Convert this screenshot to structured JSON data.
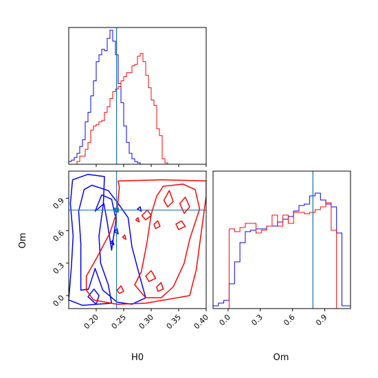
{
  "chart_data": {
    "type": "corner-plot",
    "parameters": [
      "H0",
      "Om"
    ],
    "truth": {
      "H0": 0.237,
      "Om": 0.79
    },
    "colors": {
      "series_a": "#0000ff",
      "series_b": "#ff0000",
      "truth": "#1f77b4"
    },
    "panels": {
      "h0_hist": {
        "xlim": [
          0.15,
          0.4
        ],
        "bin_edges": [
          0.15,
          0.155,
          0.16,
          0.165,
          0.17,
          0.175,
          0.18,
          0.185,
          0.19,
          0.195,
          0.2,
          0.205,
          0.21,
          0.215,
          0.22,
          0.225,
          0.23,
          0.235,
          0.24,
          0.245,
          0.25,
          0.255,
          0.26,
          0.265,
          0.27,
          0.275,
          0.28,
          0.285,
          0.29,
          0.295,
          0.3,
          0.305,
          0.31,
          0.315,
          0.32,
          0.325,
          0.33,
          0.335,
          0.34,
          0.345,
          0.35,
          0.355,
          0.36,
          0.365,
          0.37,
          0.375,
          0.38,
          0.385,
          0.39,
          0.395,
          0.4
        ],
        "series": [
          {
            "color": "#0000ff",
            "values": [
              0.02,
              0.03,
              0.05,
              0.08,
              0.13,
              0.18,
              0.31,
              0.38,
              0.5,
              0.61,
              0.75,
              0.8,
              0.84,
              0.83,
              0.92,
              0.98,
              0.9,
              0.8,
              0.59,
              0.45,
              0.28,
              0.16,
              0.08,
              0.04,
              0.02,
              0.01,
              0,
              0,
              0,
              0,
              0,
              0,
              0,
              0,
              0,
              0,
              0,
              0,
              0,
              0,
              0,
              0,
              0,
              0,
              0,
              0,
              0,
              0,
              0,
              0
            ]
          },
          {
            "color": "#ff0000",
            "values": [
              0,
              0,
              0,
              0.02,
              0.06,
              0.06,
              0.11,
              0.16,
              0.25,
              0.28,
              0.29,
              0.31,
              0.32,
              0.38,
              0.42,
              0.48,
              0.53,
              0.55,
              0.57,
              0.61,
              0.64,
              0.67,
              0.67,
              0.72,
              0.73,
              0.79,
              0.81,
              0.75,
              0.65,
              0.56,
              0.47,
              0.43,
              0.26,
              0.21,
              0.04,
              0.01,
              0,
              0,
              0,
              0,
              0,
              0,
              0,
              0,
              0,
              0,
              0,
              0,
              0,
              0
            ]
          }
        ]
      },
      "om_hist": {
        "xlim": [
          -0.14,
          1.14
        ],
        "bin_edges": [
          -0.14,
          -0.09,
          -0.04,
          0.01,
          0.06,
          0.11,
          0.16,
          0.21,
          0.26,
          0.31,
          0.36,
          0.41,
          0.46,
          0.51,
          0.56,
          0.61,
          0.66,
          0.71,
          0.76,
          0.81,
          0.86,
          0.91,
          0.96,
          1.01,
          1.06,
          1.11,
          1.14
        ],
        "series": [
          {
            "color": "#0000ff",
            "values": [
              0.02,
              0.04,
              0.06,
              0.18,
              0.34,
              0.48,
              0.56,
              0.57,
              0.58,
              0.58,
              0.6,
              0.6,
              0.63,
              0.65,
              0.67,
              0.71,
              0.75,
              0.76,
              0.82,
              0.84,
              0.79,
              0.76,
              0.74,
              0.55,
              0.02,
              0.02
            ]
          },
          {
            "color": "#ff0000",
            "values": [
              0,
              0,
              0,
              0.58,
              0.56,
              0.59,
              0.62,
              0.62,
              0.55,
              0.57,
              0.6,
              0.68,
              0.6,
              0.68,
              0.62,
              0.7,
              0.7,
              0.69,
              0.7,
              0.72,
              0.74,
              0.77,
              0.57,
              0,
              0,
              0
            ]
          }
        ]
      },
      "joint": {
        "xlim": [
          0.15,
          0.4
        ],
        "ylim": [
          -0.12,
          1.15
        ],
        "contours": [
          {
            "color": "#0000ff",
            "paths": [
              [
                [
                  0.15,
                  -0.04
                ],
                [
                  0.155,
                  0.28
                ],
                [
                  0.158,
                  0.55
                ],
                [
                  0.153,
                  0.85
                ],
                [
                  0.157,
                  1.07
                ],
                [
                  0.185,
                  1.12
                ],
                [
                  0.215,
                  1.1
                ],
                [
                  0.213,
                  0.85
                ],
                [
                  0.205,
                  0.55
                ],
                [
                  0.208,
                  0.3
                ],
                [
                  0.222,
                  0.1
                ],
                [
                  0.228,
                  -0.07
                ],
                [
                  0.175,
                  -0.09
                ],
                [
                  0.15,
                  -0.04
                ]
              ],
              [
                [
                  0.172,
                  0.05
                ],
                [
                  0.172,
                  0.48
                ],
                [
                  0.168,
                  0.78
                ],
                [
                  0.178,
                  0.98
                ],
                [
                  0.192,
                  1.02
                ],
                [
                  0.222,
                  0.97
                ],
                [
                  0.24,
                  0.85
                ],
                [
                  0.258,
                  0.72
                ],
                [
                  0.265,
                  0.45
                ],
                [
                  0.278,
                  0.2
                ],
                [
                  0.29,
                  -0.02
                ],
                [
                  0.265,
                  -0.08
                ],
                [
                  0.238,
                  -0.06
                ],
                [
                  0.212,
                  0.05
                ],
                [
                  0.198,
                  0.25
                ],
                [
                  0.186,
                  0.06
                ],
                [
                  0.172,
                  0.05
                ]
              ],
              [
                [
                  0.198,
                  0.78
                ],
                [
                  0.21,
                  0.93
                ],
                [
                  0.228,
                  0.89
                ],
                [
                  0.236,
                  0.7
                ],
                [
                  0.228,
                  0.42
                ],
                [
                  0.22,
                  0.68
                ],
                [
                  0.214,
                  0.85
                ],
                [
                  0.198,
                  0.78
                ]
              ],
              [
                [
                  0.185,
                  -0.01
                ],
                [
                  0.196,
                  0.06
                ],
                [
                  0.205,
                  0.0
                ],
                [
                  0.2,
                  -0.08
                ],
                [
                  0.185,
                  -0.01
                ]
              ],
              [
                [
                  0.233,
                  0.59
                ],
                [
                  0.238,
                  0.62
                ],
                [
                  0.24,
                  0.57
                ],
                [
                  0.233,
                  0.59
                ]
              ],
              [
                [
                  0.275,
                  0.8
                ],
                [
                  0.28,
                  0.82
                ],
                [
                  0.282,
                  0.78
                ],
                [
                  0.275,
                  0.8
                ]
              ],
              [
                [
                  0.226,
                  0.49
                ],
                [
                  0.23,
                  0.51
                ],
                [
                  0.232,
                  0.47
                ],
                [
                  0.226,
                  0.49
                ]
              ]
            ]
          },
          {
            "color": "#ff0000",
            "paths": [
              [
                [
                  0.182,
                  0.18
                ],
                [
                  0.2,
                  0.34
                ],
                [
                  0.225,
                  0.58
                ],
                [
                  0.238,
                  0.78
                ],
                [
                  0.242,
                  1.0
                ],
                [
                  0.24,
                  1.06
                ],
                [
                  0.32,
                  1.07
                ],
                [
                  0.4,
                  1.06
                ],
                [
                  0.4,
                  0.92
                ],
                [
                  0.392,
                  0.62
                ],
                [
                  0.382,
                  0.24
                ],
                [
                  0.37,
                  0.0
                ],
                [
                  0.29,
                  -0.07
                ],
                [
                  0.238,
                  -0.08
                ],
                [
                  0.195,
                  -0.04
                ],
                [
                  0.182,
                  0.05
                ],
                [
                  0.182,
                  0.18
                ]
              ],
              [
                [
                  0.27,
                  0.1
                ],
                [
                  0.282,
                  0.22
                ],
                [
                  0.292,
                  0.48
                ],
                [
                  0.3,
                  0.75
                ],
                [
                  0.31,
                  0.92
                ],
                [
                  0.322,
                  1.01
                ],
                [
                  0.358,
                  1.03
                ],
                [
                  0.38,
                  0.98
                ],
                [
                  0.388,
                  0.8
                ],
                [
                  0.37,
                  0.52
                ],
                [
                  0.36,
                  0.3
                ],
                [
                  0.34,
                  0.08
                ],
                [
                  0.318,
                  -0.02
                ],
                [
                  0.29,
                  -0.02
                ],
                [
                  0.27,
                  0.1
                ]
              ],
              [
                [
                  0.323,
                  0.88
                ],
                [
                  0.333,
                  0.97
                ],
                [
                  0.34,
                  0.87
                ],
                [
                  0.33,
                  0.82
                ],
                [
                  0.323,
                  0.88
                ]
              ],
              [
                [
                  0.352,
                  0.85
                ],
                [
                  0.362,
                  0.91
                ],
                [
                  0.37,
                  0.82
                ],
                [
                  0.36,
                  0.76
                ],
                [
                  0.352,
                  0.85
                ]
              ],
              [
                [
                  0.345,
                  0.66
                ],
                [
                  0.355,
                  0.69
                ],
                [
                  0.362,
                  0.64
                ],
                [
                  0.35,
                  0.61
                ],
                [
                  0.345,
                  0.66
                ]
              ],
              [
                [
                  0.283,
                  0.74
                ],
                [
                  0.293,
                  0.79
                ],
                [
                  0.3,
                  0.74
                ],
                [
                  0.29,
                  0.7
                ],
                [
                  0.283,
                  0.74
                ]
              ],
              [
                [
                  0.305,
                  0.66
                ],
                [
                  0.312,
                  0.69
                ],
                [
                  0.316,
                  0.64
                ],
                [
                  0.308,
                  0.62
                ],
                [
                  0.305,
                  0.66
                ]
              ],
              [
                [
                  0.29,
                  0.18
                ],
                [
                  0.3,
                  0.23
                ],
                [
                  0.308,
                  0.16
                ],
                [
                  0.296,
                  0.13
                ],
                [
                  0.29,
                  0.18
                ]
              ],
              [
                [
                  0.31,
                  0.08
                ],
                [
                  0.318,
                  0.12
                ],
                [
                  0.322,
                  0.06
                ],
                [
                  0.312,
                  0.04
                ],
                [
                  0.31,
                  0.08
                ]
              ],
              [
                [
                  0.272,
                  0.7
                ],
                [
                  0.276,
                  0.72
                ],
                [
                  0.278,
                  0.68
                ],
                [
                  0.272,
                  0.7
                ]
              ],
              [
                [
                  0.248,
                  0.54
                ],
                [
                  0.252,
                  0.56
                ],
                [
                  0.254,
                  0.52
                ],
                [
                  0.248,
                  0.54
                ]
              ],
              [
                [
                  0.238,
                  0.05
                ],
                [
                  0.245,
                  0.09
                ],
                [
                  0.25,
                  0.04
                ],
                [
                  0.242,
                  0.02
                ],
                [
                  0.238,
                  0.05
                ]
              ]
            ]
          }
        ]
      }
    },
    "ticks": {
      "h0_x": [
        0.2,
        0.25,
        0.3,
        0.35,
        0.4
      ],
      "h0_x_labels": [
        "0.20",
        "0.25",
        "0.30",
        "0.35",
        "0.40"
      ],
      "om_y": [
        0.0,
        0.3,
        0.6,
        0.9
      ],
      "om_y_labels": [
        "0.0",
        "0.3",
        "0.6",
        "0.9"
      ],
      "om_x": [
        0.0,
        0.3,
        0.6,
        0.9
      ],
      "om_x_labels": [
        "0.0",
        "0.3",
        "0.6",
        "0.9"
      ]
    },
    "labels": {
      "joint_x": "H0",
      "joint_y": "Om",
      "om_hist_x": "Om"
    }
  }
}
